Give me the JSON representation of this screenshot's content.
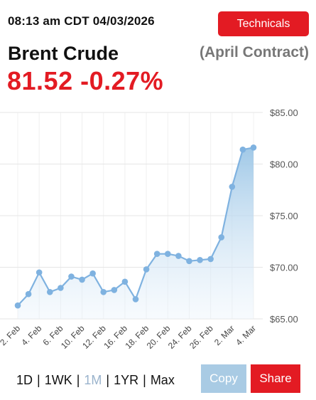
{
  "header": {
    "timestamp": "08:13 am CDT 04/03/2026",
    "technicals_label": "Technicals",
    "title": "Brent Crude",
    "contract": "(April Contract)",
    "quote": "81.52 -0.27%"
  },
  "colors": {
    "accent_red": "#e31b23",
    "line_blue": "#7fb2e0",
    "area_top": "#a9cde9",
    "copy_button": "#a9cbe4"
  },
  "chart_data": {
    "type": "area",
    "y_ticks": [
      "$85.00",
      "$80.00",
      "$75.00",
      "$70.00",
      "$65.00"
    ],
    "ylim": [
      65,
      85
    ],
    "grid": true,
    "x_tick_labels": [
      "2. Feb",
      "4. Feb",
      "6. Feb",
      "10. Feb",
      "12. Feb",
      "16. Feb",
      "18. Feb",
      "20. Feb",
      "24. Feb",
      "26. Feb",
      "2. Mar",
      "4. Mar"
    ],
    "x_tick_label_positions": [
      0,
      2,
      4,
      6,
      8,
      10,
      12,
      14,
      16,
      18,
      20,
      22
    ],
    "series": [
      {
        "values": [
          66.3,
          67.4,
          69.5,
          67.6,
          68.0,
          69.1,
          68.8,
          69.4,
          67.6,
          67.8,
          68.6,
          66.9,
          69.8,
          71.3,
          71.3,
          71.1,
          70.6,
          70.7,
          70.8,
          72.9,
          77.8,
          81.4,
          81.6
        ]
      }
    ]
  },
  "ranges": {
    "options": [
      "1D",
      "1WK",
      "1M",
      "1YR",
      "Max"
    ],
    "active": "1M"
  },
  "actions": {
    "copy_label": "Copy",
    "share_label": "Share"
  }
}
